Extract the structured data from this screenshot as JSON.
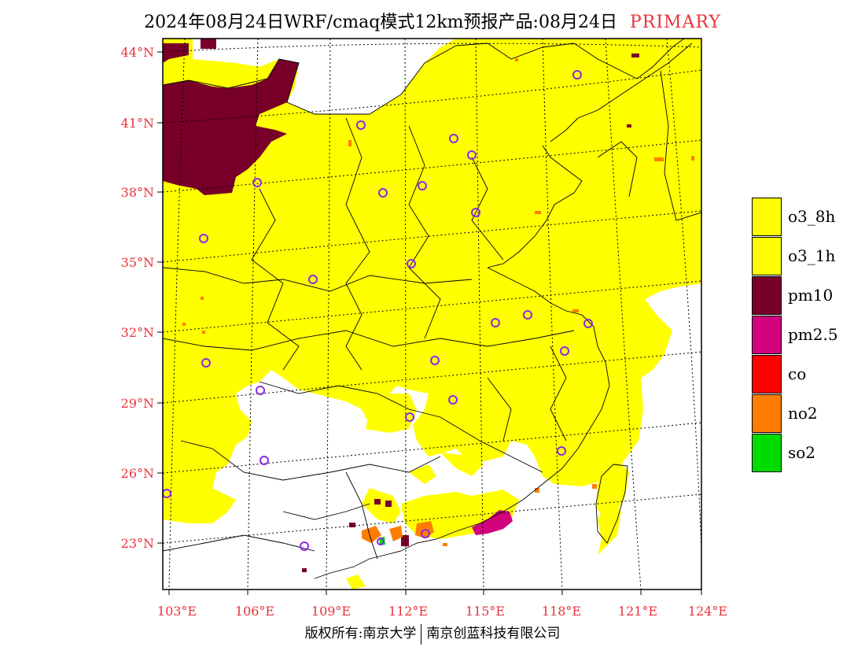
{
  "title": {
    "main": "2024年08月24日WRF/cmaq模式12km预报产品:08月24日",
    "tag": "PRIMARY"
  },
  "axes": {
    "lat_labels": [
      "44°N",
      "41°N",
      "38°N",
      "35°N",
      "32°N",
      "29°N",
      "26°N",
      "23°N"
    ],
    "lon_labels": [
      "103°E",
      "106°E",
      "109°E",
      "112°E",
      "115°E",
      "118°E",
      "121°E",
      "124°E"
    ]
  },
  "legend": {
    "items": [
      {
        "label": "o3_8h",
        "color": "#ffff00"
      },
      {
        "label": "o3_1h",
        "color": "#ffff00"
      },
      {
        "label": "pm10",
        "color": "#780028"
      },
      {
        "label": "pm2.5",
        "color": "#d2037c"
      },
      {
        "label": "co",
        "color": "#ff0000"
      },
      {
        "label": "no2",
        "color": "#ff7d00"
      },
      {
        "label": "so2",
        "color": "#00dc00"
      }
    ]
  },
  "copyright": {
    "left": "版权所有:南京大学",
    "right": "南京创蓝科技有限公司"
  },
  "colors": {
    "o3": "#ffff00",
    "pm10": "#780028",
    "pm25": "#d2037c",
    "no2": "#ff7d00",
    "so2": "#00dc00",
    "city_marker": "#8a2be2",
    "tick_label": "#e8323c"
  }
}
